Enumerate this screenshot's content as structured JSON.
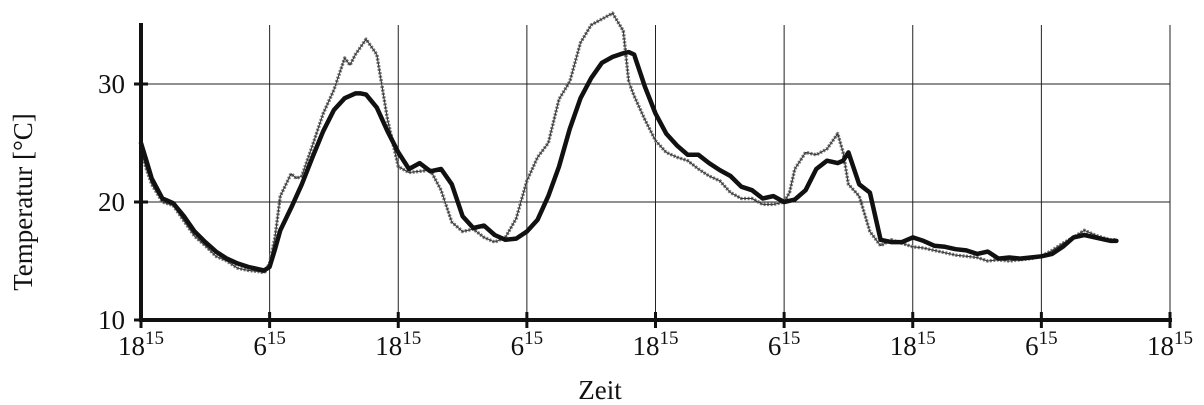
{
  "chart_data": {
    "type": "line",
    "title": "",
    "xlabel": "Zeit",
    "ylabel": "Temperatur [°C]",
    "ylim": [
      10,
      35
    ],
    "grid": true,
    "legend": "none",
    "y_ticks": [
      "10",
      "20",
      "30"
    ],
    "x_ticks": [
      {
        "base": "18",
        "sup": "15"
      },
      {
        "base": "6",
        "sup": "15"
      },
      {
        "base": "18",
        "sup": "15"
      },
      {
        "base": "6",
        "sup": "15"
      },
      {
        "base": "18",
        "sup": "15"
      },
      {
        "base": "6",
        "sup": "15"
      },
      {
        "base": "18",
        "sup": "15"
      },
      {
        "base": "6",
        "sup": "15"
      },
      {
        "base": "18",
        "sup": "15"
      }
    ],
    "x_unit": "hours after first 18:15",
    "xlim": [
      0,
      96
    ],
    "series": [
      {
        "style": "thick-black",
        "x": [
          0,
          0.5,
          1,
          2,
          3,
          4,
          5,
          6,
          7,
          8,
          9,
          10,
          11,
          11.5,
          12,
          12.5,
          13,
          14,
          15,
          16,
          17,
          18,
          19,
          20,
          20.5,
          21,
          22,
          23,
          24,
          25,
          26,
          27,
          28,
          29,
          30,
          31,
          32,
          33,
          34,
          35,
          36,
          37,
          38,
          39,
          40,
          41,
          42,
          43,
          44,
          45,
          45.5,
          46,
          47,
          48,
          49,
          50,
          51,
          52,
          53,
          54,
          55,
          56,
          57,
          58,
          59,
          60,
          60.5,
          61,
          62,
          63,
          64,
          65,
          65.5,
          66,
          67,
          68,
          69,
          70,
          71,
          72,
          73,
          74,
          75,
          76,
          77,
          78,
          79,
          80,
          81,
          82,
          83,
          84,
          85,
          86,
          87,
          88,
          89,
          90,
          90.5,
          91
        ],
        "y": [
          25,
          23.5,
          22,
          20.3,
          19.9,
          18.8,
          17.5,
          16.6,
          15.8,
          15.2,
          14.8,
          14.5,
          14.3,
          14.2,
          14.5,
          16,
          17.6,
          19.5,
          21.5,
          23.8,
          26,
          27.8,
          28.8,
          29.2,
          29.2,
          29.1,
          28,
          26,
          24.2,
          22.8,
          23.3,
          22.6,
          22.8,
          21.5,
          18.8,
          17.8,
          18,
          17.2,
          16.8,
          16.9,
          17.5,
          18.5,
          20.5,
          23,
          26.2,
          28.8,
          30.5,
          31.8,
          32.3,
          32.6,
          32.7,
          32.5,
          29.8,
          27.5,
          25.8,
          24.8,
          24,
          24,
          23.3,
          22.7,
          22.2,
          21.3,
          21,
          20.3,
          20.5,
          20,
          20.1,
          20.2,
          21,
          22.8,
          23.5,
          23.3,
          23.5,
          24.2,
          21.5,
          20.8,
          16.8,
          16.6,
          16.6,
          17,
          16.7,
          16.3,
          16.2,
          16,
          15.9,
          15.6,
          15.8,
          15.2,
          15.3,
          15.2,
          15.3,
          15.4,
          15.6,
          16.2,
          17,
          17.2,
          17,
          16.8,
          16.7,
          16.7
        ],
        "color": "#111111"
      },
      {
        "style": "thin-gray-hatched",
        "x": [
          0,
          0.5,
          1,
          2,
          3,
          4,
          5,
          6,
          7,
          8,
          9,
          10,
          11,
          11.5,
          12,
          12.5,
          13,
          14,
          14.5,
          15,
          16,
          17,
          18,
          19,
          19.5,
          20,
          21,
          22,
          23,
          24,
          25,
          26,
          27,
          28,
          29,
          30,
          31,
          32,
          33,
          34,
          35,
          36,
          37,
          38,
          39,
          40,
          41,
          42,
          43,
          44,
          45,
          45.5,
          46,
          47,
          48,
          49,
          50,
          51,
          52,
          53,
          54,
          55,
          56,
          57,
          58,
          59,
          60,
          60.5,
          61,
          62,
          63,
          64,
          65,
          65.5,
          66,
          67,
          68,
          69,
          70,
          71,
          72,
          73,
          74,
          75,
          76,
          77,
          78,
          79,
          80,
          81,
          82,
          83,
          84,
          85,
          86,
          87,
          88,
          89,
          90,
          90.5,
          91
        ],
        "y": [
          24.3,
          22.8,
          21.5,
          20,
          19.7,
          18.4,
          17.1,
          16.3,
          15.4,
          15,
          14.4,
          14.2,
          14.1,
          14,
          14.8,
          17,
          20.5,
          22.4,
          22,
          22.2,
          24.8,
          27.5,
          29.5,
          32.2,
          31.6,
          32.5,
          33.8,
          32.5,
          27,
          23,
          22.5,
          22.6,
          22.7,
          21,
          18.3,
          17.5,
          17.7,
          17,
          16.6,
          17,
          18.6,
          21.8,
          23.8,
          25,
          28.7,
          30.2,
          33.5,
          35,
          35.5,
          36,
          34.5,
          30.2,
          29,
          27,
          25.2,
          24.2,
          23.8,
          23.5,
          22.8,
          22.2,
          21.8,
          20.8,
          20.3,
          20.3,
          19.8,
          19.8,
          20,
          20.8,
          22.8,
          24.2,
          24,
          24.5,
          25.8,
          24.2,
          21.5,
          20.5,
          17.5,
          16.3,
          16.8,
          16.5,
          16.2,
          16.1,
          15.9,
          15.7,
          15.5,
          15.4,
          15.3,
          15,
          15.1,
          15,
          15.1,
          15.2,
          15.4,
          15.9,
          16.5,
          17,
          17.6,
          17.2,
          16.9,
          16.8,
          16.8
        ],
        "color": "#7a7a7a"
      }
    ],
    "colors": {
      "axis": "#111111",
      "grid": "#222222",
      "background": "#ffffff"
    }
  }
}
